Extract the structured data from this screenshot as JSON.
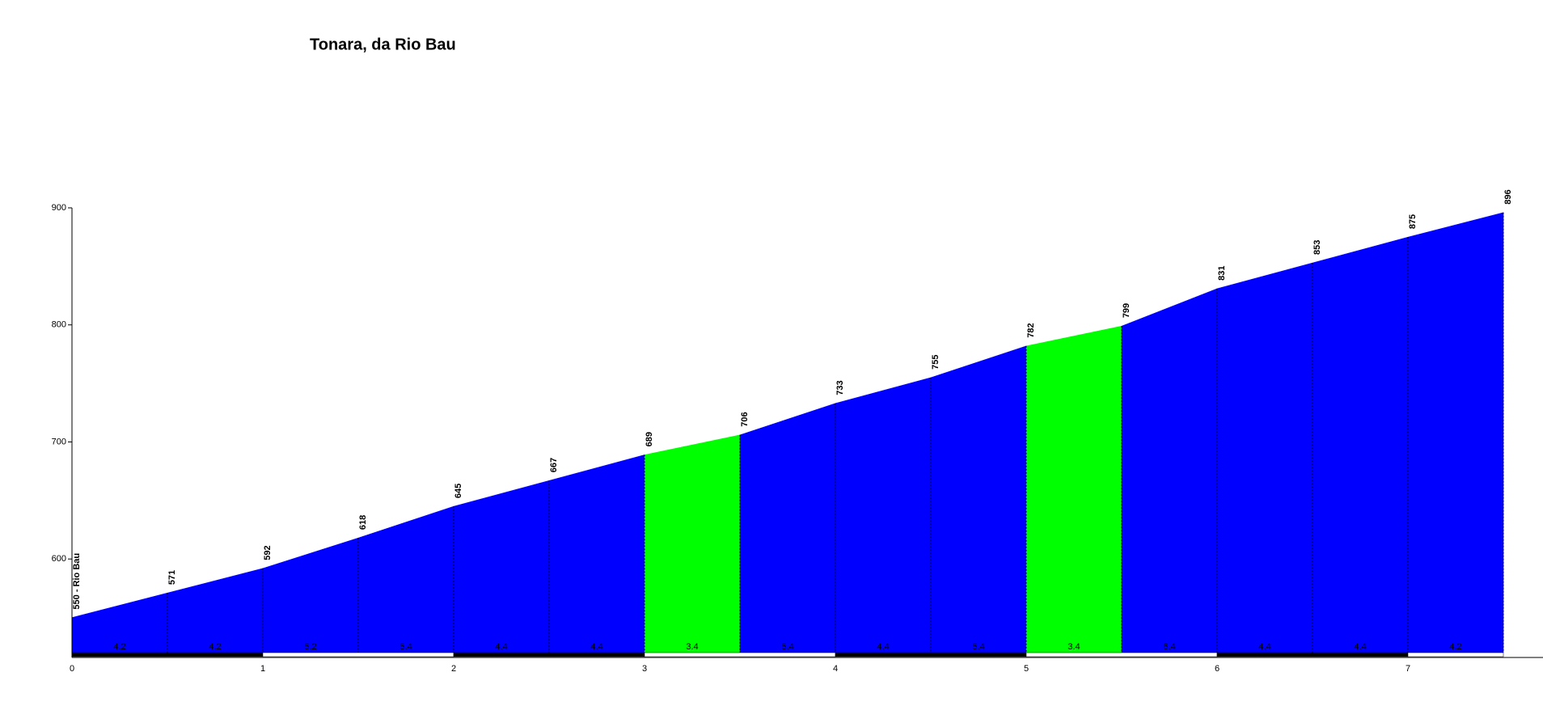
{
  "chart_data": {
    "type": "area",
    "title": "Tonara, da Rio Bau",
    "x": [
      0,
      0.5,
      1,
      1.5,
      2,
      2.5,
      3,
      3.5,
      4,
      4.5,
      5,
      5.5,
      6,
      6.5,
      7,
      7.5
    ],
    "series": [
      {
        "values": [
          550,
          571,
          592,
          618,
          645,
          667,
          689,
          706,
          733,
          755,
          782,
          799,
          831,
          853,
          875,
          896
        ],
        "value_labels": [
          "550 - Rio Bau",
          "571",
          "592",
          "618",
          "645",
          "667",
          "689",
          "706",
          "733",
          "755",
          "782",
          "799",
          "831",
          "853",
          "875",
          "896"
        ]
      }
    ],
    "segment_gradients": [
      4.2,
      4.2,
      5.2,
      5.4,
      4.4,
      4.4,
      3.4,
      5.4,
      4.4,
      5.4,
      3.4,
      6.4,
      4.4,
      4.4,
      4.2
    ],
    "segment_colors": [
      "#0000ff",
      "#0000ff",
      "#0000ff",
      "#0000ff",
      "#0000ff",
      "#0000ff",
      "#00ff00",
      "#0000ff",
      "#0000ff",
      "#0000ff",
      "#00ff00",
      "#0000ff",
      "#0000ff",
      "#0000ff",
      "#0000ff"
    ],
    "xlim": [
      0,
      7.5
    ],
    "xticks": [
      0,
      1,
      2,
      3,
      4,
      5,
      6,
      7
    ],
    "ylim": [
      520,
      900
    ],
    "yticks": [
      600,
      700,
      800,
      900
    ]
  }
}
